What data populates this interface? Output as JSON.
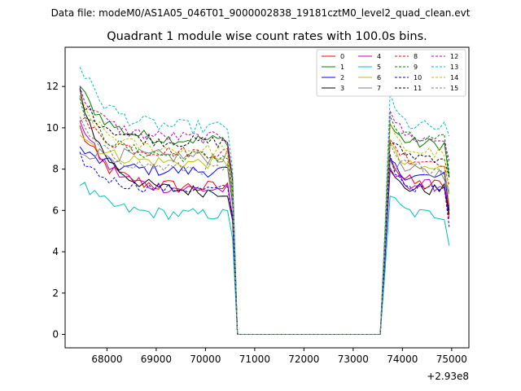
{
  "chart_data": {
    "type": "line",
    "suptitle": "Data file: modeM0/AS1A05_046T01_9000002838_19181cztM0_level2_quad_clean.evt",
    "title": "Quadrant 1 module wise count rates with 100.0s bins.",
    "xlabel": "",
    "ylabel": "",
    "x_offset_label": "+2.93e8",
    "xlim": [
      67150,
      75350
    ],
    "ylim": [
      -0.65,
      13.9
    ],
    "x_ticks": [
      68000,
      69000,
      70000,
      71000,
      72000,
      73000,
      74000,
      75000
    ],
    "y_ticks": [
      0,
      2,
      4,
      6,
      8,
      10,
      12
    ],
    "legend_position": "top-right",
    "segments": [
      {
        "t_start": 67450,
        "t_end": 70550,
        "step": 100
      },
      {
        "t_start": 70650,
        "t_end": 73550,
        "step": 100
      },
      {
        "t_start": 73650,
        "t_end": 74950,
        "step": 100
      }
    ],
    "series": [
      {
        "name": "0",
        "color": "#ff0000",
        "dash": "solid",
        "start": 10.0,
        "level": 7.1,
        "post_start": 8.8,
        "post_level": 7.2,
        "end": 5.6,
        "jitter": 0.35
      },
      {
        "name": "1",
        "color": "#008000",
        "dash": "solid",
        "start": 12.0,
        "level": 9.4,
        "post_start": 10.2,
        "post_level": 9.2,
        "end": 7.6,
        "jitter": 0.3
      },
      {
        "name": "2",
        "color": "#0000ff",
        "dash": "solid",
        "start": 9.0,
        "level": 7.9,
        "post_start": 8.4,
        "post_level": 7.6,
        "end": 6.0,
        "jitter": 0.3
      },
      {
        "name": "3",
        "color": "#000000",
        "dash": "solid",
        "start": 11.8,
        "level": 6.9,
        "post_start": 7.8,
        "post_level": 7.0,
        "end": 5.8,
        "jitter": 0.3
      },
      {
        "name": "4",
        "color": "#bf00bf",
        "dash": "solid",
        "start": 10.5,
        "level": 7.0,
        "post_start": 8.0,
        "post_level": 7.2,
        "end": 6.2,
        "jitter": 0.3
      },
      {
        "name": "5",
        "color": "#00bfbf",
        "dash": "solid",
        "start": 7.4,
        "level": 5.8,
        "post_start": 6.8,
        "post_level": 5.8,
        "end": 4.3,
        "jitter": 0.3
      },
      {
        "name": "6",
        "color": "#bfbf00",
        "dash": "solid",
        "start": 9.8,
        "level": 8.3,
        "post_start": 9.2,
        "post_level": 8.0,
        "end": 6.3,
        "jitter": 0.3
      },
      {
        "name": "7",
        "color": "#808080",
        "dash": "solid",
        "start": 8.9,
        "level": 8.6,
        "post_start": 8.5,
        "post_level": 7.8,
        "end": 6.8,
        "jitter": 0.35
      },
      {
        "name": "8",
        "color": "#ff0000",
        "dash": "dashed",
        "start": 10.6,
        "level": 8.8,
        "post_start": 9.6,
        "post_level": 8.4,
        "end": 7.2,
        "jitter": 0.3
      },
      {
        "name": "9",
        "color": "#008000",
        "dash": "dashed",
        "start": 11.2,
        "level": 8.6,
        "post_start": 10.4,
        "post_level": 9.4,
        "end": 7.8,
        "jitter": 0.3
      },
      {
        "name": "10",
        "color": "#0000ff",
        "dash": "dashed",
        "start": 8.6,
        "level": 7.0,
        "post_start": 8.6,
        "post_level": 7.0,
        "end": 5.2,
        "jitter": 0.25
      },
      {
        "name": "11",
        "color": "#000000",
        "dash": "dashed",
        "start": 11.5,
        "level": 9.3,
        "post_start": 9.4,
        "post_level": 8.6,
        "end": 7.6,
        "jitter": 0.3
      },
      {
        "name": "12",
        "color": "#bf00bf",
        "dash": "dashed",
        "start": 11.8,
        "level": 9.5,
        "post_start": 11.0,
        "post_level": 9.4,
        "end": 8.4,
        "jitter": 0.3
      },
      {
        "name": "13",
        "color": "#00bfbf",
        "dash": "dashed",
        "start": 13.1,
        "level": 10.0,
        "post_start": 11.4,
        "post_level": 10.0,
        "end": 9.6,
        "jitter": 0.35
      },
      {
        "name": "14",
        "color": "#bfbf00",
        "dash": "dashed",
        "start": 11.3,
        "level": 8.9,
        "post_start": 10.0,
        "post_level": 8.8,
        "end": 6.8,
        "jitter": 0.3
      },
      {
        "name": "15",
        "color": "#808080",
        "dash": "dashed",
        "start": 10.3,
        "level": 8.0,
        "post_start": 9.0,
        "post_level": 8.0,
        "end": 6.9,
        "jitter": 0.3
      }
    ]
  }
}
